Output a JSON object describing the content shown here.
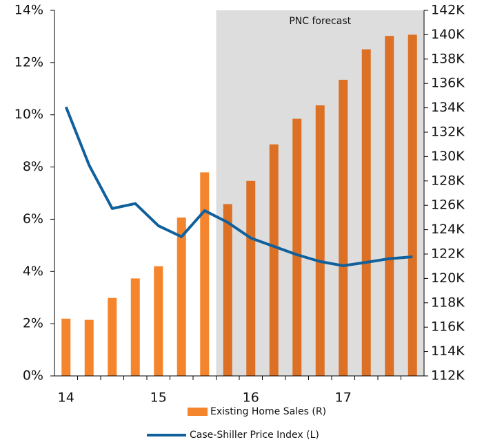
{
  "chart_data": {
    "type": "bar_line",
    "categories": [
      "14",
      null,
      null,
      null,
      "15",
      null,
      null,
      null,
      "16",
      null,
      null,
      null,
      "17",
      null,
      null,
      null
    ],
    "annotation": "PNC forecast",
    "forecast_start": 7,
    "shade_color": "#dddddd",
    "series": [
      {
        "name": "Existing Home Sales (R)",
        "type": "bar",
        "axis": "y2",
        "colors": [
          "#f5852d",
          "#f5852d",
          "#f5852d",
          "#f5852d",
          "#f5852d",
          "#f5852d",
          "#f5852d",
          "#dc7024",
          "#dc7024",
          "#dc7024",
          "#dc7024",
          "#dc7024",
          "#dc7024",
          "#dc7024",
          "#dc7024",
          "#dc7024"
        ],
        "color": "#f5852d",
        "values": [
          116700,
          116600,
          118400,
          120000,
          121000,
          125000,
          128700,
          126100,
          128000,
          131000,
          133100,
          134200,
          136300,
          138800,
          139900,
          140000
        ]
      },
      {
        "name": "Case-Shiller Price Index (L)",
        "type": "line",
        "axis": "y",
        "color": "#10609c",
        "values": [
          10.3,
          8.07,
          6.41,
          6.6,
          5.75,
          5.33,
          6.33,
          5.88,
          5.28,
          4.96,
          4.64,
          4.38,
          4.22,
          4.35,
          4.49,
          4.56
        ]
      }
    ],
    "ylim": [
      0,
      14
    ],
    "yticks": [
      {
        "value": 0,
        "label": "0%"
      },
      {
        "value": 2,
        "label": "2%"
      },
      {
        "value": 4,
        "label": "4%"
      },
      {
        "value": 6,
        "label": "6%"
      },
      {
        "value": 8,
        "label": "8%"
      },
      {
        "value": 10,
        "label": "10%"
      },
      {
        "value": 12,
        "label": "12%"
      },
      {
        "value": 14,
        "label": "14%"
      }
    ],
    "y2lim": [
      112000,
      142000
    ],
    "y2ticks": [
      {
        "value": 112000,
        "label": "112K"
      },
      {
        "value": 114000,
        "label": "114K"
      },
      {
        "value": 116000,
        "label": "116K"
      },
      {
        "value": 118000,
        "label": "118K"
      },
      {
        "value": 120000,
        "label": "120K"
      },
      {
        "value": 122000,
        "label": "122K"
      },
      {
        "value": 124000,
        "label": "124K"
      },
      {
        "value": 126000,
        "label": "126K"
      },
      {
        "value": 128000,
        "label": "128K"
      },
      {
        "value": 130000,
        "label": "130K"
      },
      {
        "value": 132000,
        "label": "132K"
      },
      {
        "value": 134000,
        "label": "134K"
      },
      {
        "value": 136000,
        "label": "136K"
      },
      {
        "value": 138000,
        "label": "138K"
      },
      {
        "value": 140000,
        "label": "140K"
      },
      {
        "value": 142000,
        "label": "142K"
      }
    ]
  }
}
